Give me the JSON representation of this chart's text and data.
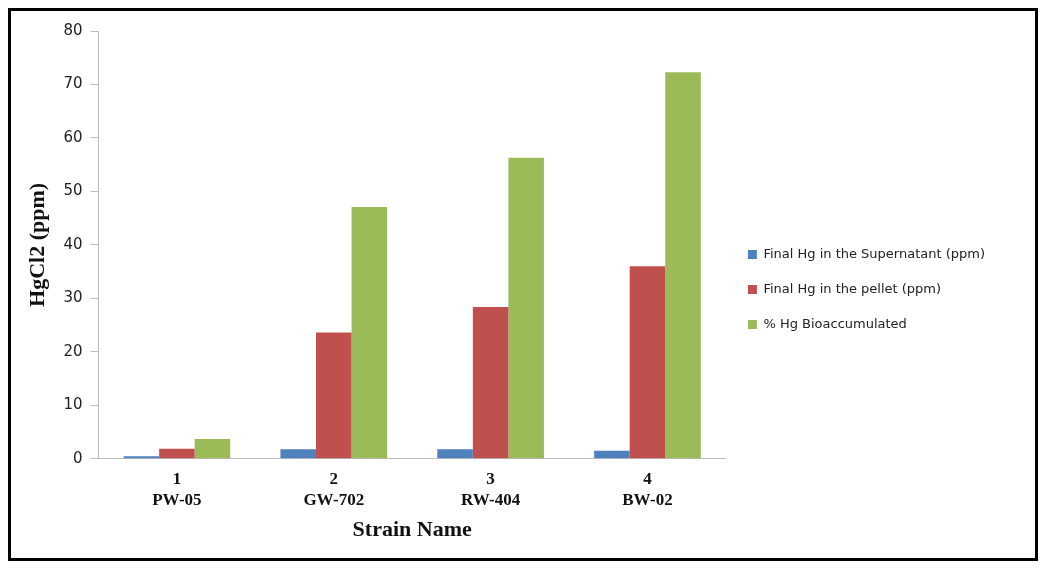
{
  "chart_data": {
    "type": "bar",
    "xlabel": "Strain Name",
    "ylabel": "HgCl2 (ppm)",
    "categories": [
      "1\nPW-05",
      "2\nGW-702",
      "3\nRW-404",
      "4\nBW-02"
    ],
    "series": [
      {
        "name": "Final Hg in the Supernatant (ppm)",
        "color": "#4f81bd",
        "values": [
          0.5,
          1.8,
          1.8,
          1.5
        ]
      },
      {
        "name": "Final Hg in the pellet (ppm)",
        "color": "#c0504d",
        "values": [
          1.9,
          23.6,
          28.4,
          36
        ]
      },
      {
        "name": "% Hg Bioaccumulated",
        "color": "#9bbb59",
        "values": [
          3.7,
          47.1,
          56.3,
          72.3
        ]
      }
    ],
    "ylim": [
      0,
      80
    ],
    "yticks": [
      0,
      10,
      20,
      30,
      40,
      50,
      60,
      70,
      80
    ],
    "grid": false,
    "legend": "right"
  }
}
